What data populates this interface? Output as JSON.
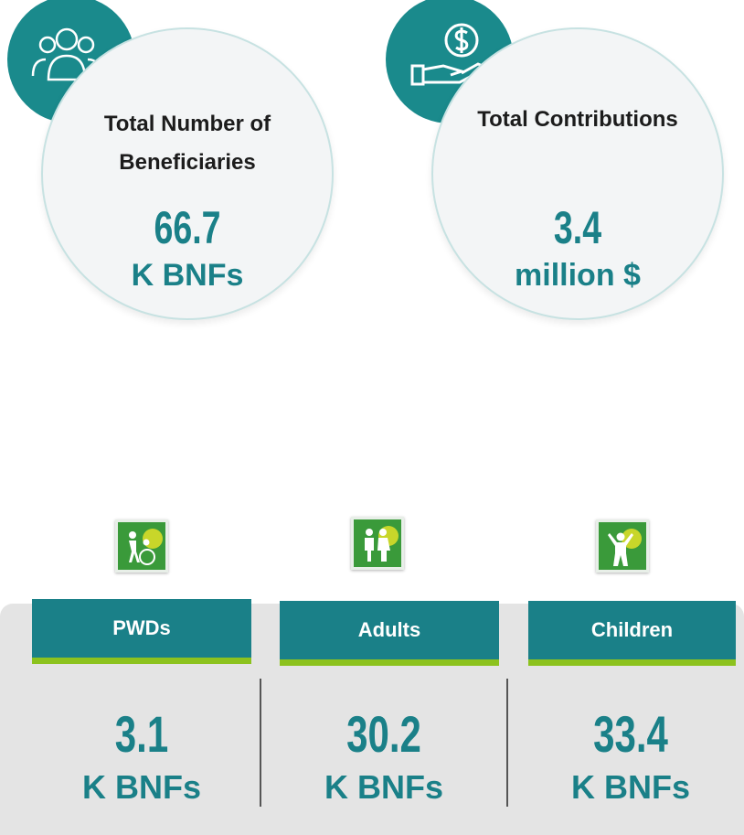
{
  "summary": [
    {
      "title": "Total Number of Beneficiaries",
      "value": 66.7,
      "unit": "K BNFs"
    },
    {
      "title": "Total Contributions",
      "value": 3.4,
      "unit": "million $"
    }
  ],
  "groups": [
    {
      "label": "PWDs",
      "value": 3.1,
      "unit": "K BNFs"
    },
    {
      "label": "Adults",
      "value": 30.2,
      "unit": "K BNFs"
    },
    {
      "label": "Children",
      "value": 33.4,
      "unit": "K BNFs"
    }
  ]
}
